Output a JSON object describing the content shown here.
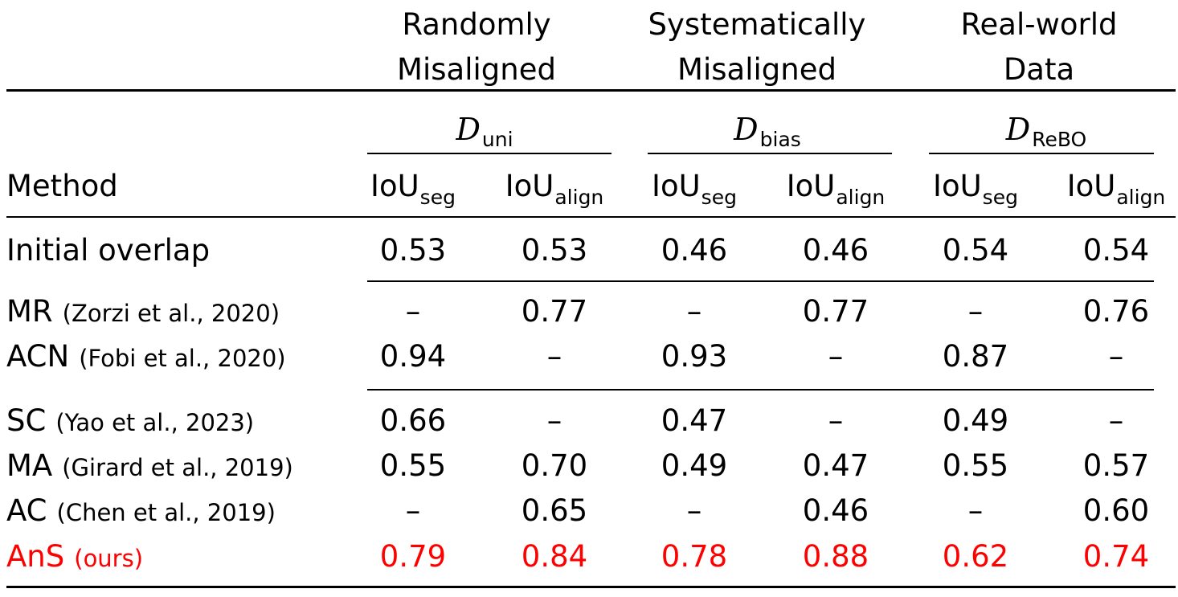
{
  "groups": [
    {
      "line1": "Randomly",
      "line2": "Misaligned",
      "dataset": "D",
      "dataset_sub": "uni"
    },
    {
      "line1": "Systematically",
      "line2": "Misaligned",
      "dataset": "D",
      "dataset_sub": "bias"
    },
    {
      "line1": "Real-world",
      "line2": "Data",
      "dataset": "D",
      "dataset_sub": "ReBO"
    }
  ],
  "header": {
    "method": "Method",
    "metric_base": "IoU",
    "metric_seg_sub": "seg",
    "metric_align_sub": "align"
  },
  "rows": [
    {
      "name": "Initial overlap",
      "cite": "",
      "values": [
        "0.53",
        "0.53",
        "0.46",
        "0.46",
        "0.54",
        "0.54"
      ],
      "highlight": false
    },
    {
      "name": "MR",
      "cite": "(Zorzi et al., 2020)",
      "values": [
        "–",
        "0.77",
        "–",
        "0.77",
        "–",
        "0.76"
      ],
      "highlight": false
    },
    {
      "name": "ACN",
      "cite": "(Fobi et al., 2020)",
      "values": [
        "0.94",
        "–",
        "0.93",
        "–",
        "0.87",
        "–"
      ],
      "highlight": false
    },
    {
      "name": "SC",
      "cite": "(Yao et al., 2023)",
      "values": [
        "0.66",
        "–",
        "0.47",
        "–",
        "0.49",
        "–"
      ],
      "highlight": false
    },
    {
      "name": "MA",
      "cite": "(Girard et al., 2019)",
      "values": [
        "0.55",
        "0.70",
        "0.49",
        "0.47",
        "0.55",
        "0.57"
      ],
      "highlight": false
    },
    {
      "name": "AC",
      "cite": "(Chen et al., 2019)",
      "values": [
        "–",
        "0.65",
        "–",
        "0.46",
        "–",
        "0.60"
      ],
      "highlight": false
    },
    {
      "name": "AnS",
      "cite": "(ours)",
      "values": [
        "0.79",
        "0.84",
        "0.78",
        "0.88",
        "0.62",
        "0.74"
      ],
      "highlight": true
    }
  ],
  "highlight_color": "#ff0000"
}
